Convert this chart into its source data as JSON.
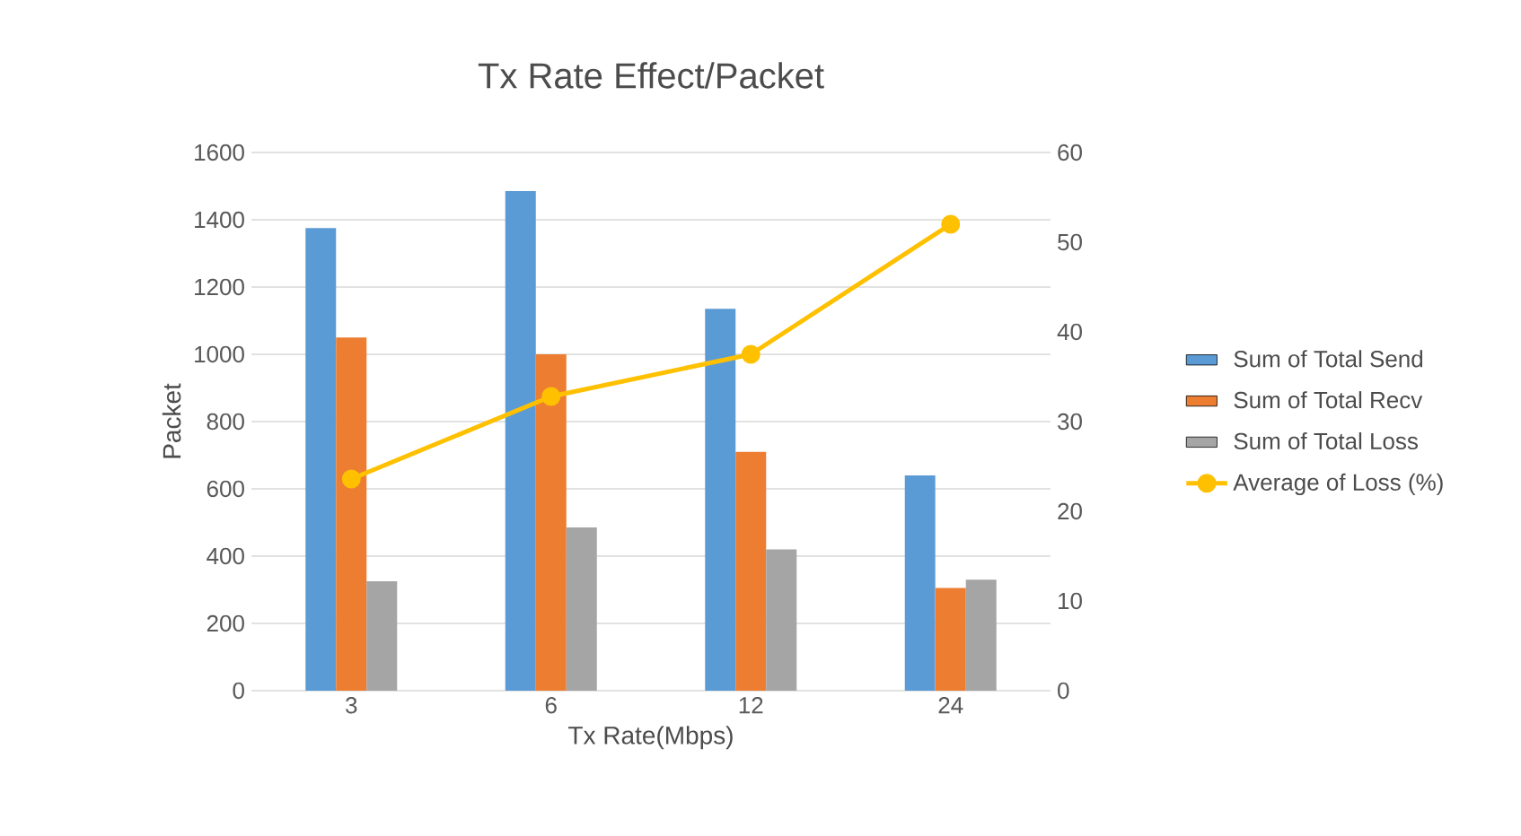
{
  "chart_data": {
    "type": "bar",
    "title": "Tx Rate Effect/Packet",
    "xlabel": "Tx Rate(Mbps)",
    "ylabel": "Packet",
    "categories": [
      "3",
      "6",
      "12",
      "24"
    ],
    "series": [
      {
        "name": "Sum of Total Send",
        "color": "#5b9bd5",
        "values": [
          1375,
          1485,
          1135,
          640
        ]
      },
      {
        "name": "Sum of Total Recv",
        "color": "#ed7d31",
        "values": [
          1050,
          1000,
          710,
          305
        ]
      },
      {
        "name": "Sum of Total Loss",
        "color": "#a5a5a5",
        "values": [
          325,
          485,
          420,
          330
        ]
      },
      {
        "name": "Average of Loss (%)",
        "color": "#ffc000",
        "type": "line",
        "axis": "y2",
        "marker": "circle",
        "values": [
          23.6,
          32.8,
          37.5,
          52.0
        ]
      }
    ],
    "ylim": [
      0,
      1600
    ],
    "yticks": [
      0,
      200,
      400,
      600,
      800,
      1000,
      1200,
      1400,
      1600
    ],
    "y2lim": [
      0,
      60
    ],
    "y2ticks": [
      0,
      10,
      20,
      30,
      40,
      50,
      60
    ],
    "grid": "y",
    "legend": "right"
  }
}
